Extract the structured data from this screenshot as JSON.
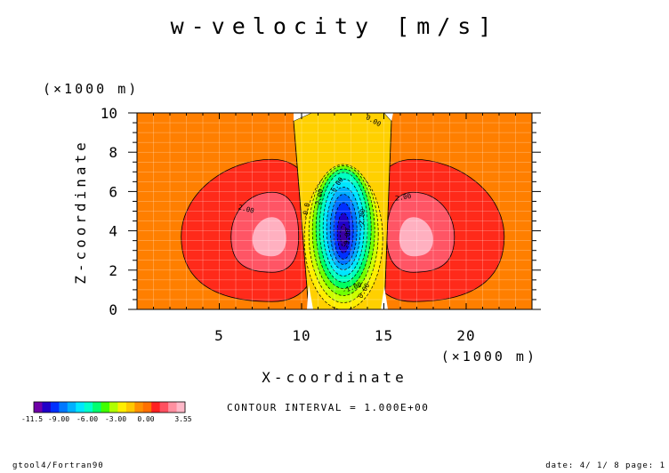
{
  "chart_data": {
    "type": "heatmap",
    "title": "w-velocity [m/s]",
    "xlabel": "X-coordinate",
    "ylabel": "Z-coordinate",
    "x_unit": "(×1000 m)",
    "y_unit": "(×1000 m)",
    "xlim": [
      0,
      24
    ],
    "ylim": [
      0,
      10
    ],
    "x_ticks": [
      5,
      10,
      15,
      20
    ],
    "x_tick_labels": [
      "5",
      "10",
      "15",
      "20"
    ],
    "y_ticks": [
      0,
      2,
      4,
      6,
      8,
      10
    ],
    "y_tick_labels": [
      "0",
      "2",
      "4",
      "6",
      "8",
      "10"
    ],
    "grid": true,
    "contour_interval_text": "CONTOUR INTERVAL = 1.000E+00",
    "contour_labels": [
      {
        "text": "0.00",
        "x": 14.3,
        "z": 9.5,
        "angle": 30
      },
      {
        "text": "-0.0",
        "x": 10.4,
        "z": 5.0,
        "angle": -80
      },
      {
        "text": "-2.00",
        "x": 11.2,
        "z": 5.6,
        "angle": -80
      },
      {
        "text": "-6.00",
        "x": 12.2,
        "z": 6.2,
        "angle": -55
      },
      {
        "text": "-9.00",
        "x": 12.9,
        "z": 3.6,
        "angle": -85
      },
      {
        "text": "-2.00",
        "x": 13.8,
        "z": 4.6,
        "angle": -85
      },
      {
        "text": "-1.00",
        "x": 13.1,
        "z": 1.0,
        "angle": -20
      },
      {
        "text": "0.00",
        "x": 13.9,
        "z": 0.9,
        "angle": -60
      },
      {
        "text": "2.00",
        "x": 6.6,
        "z": 5.0,
        "angle": 15
      },
      {
        "text": "2.00",
        "x": 16.2,
        "z": 5.6,
        "angle": -10
      }
    ],
    "colorbar": {
      "colors": [
        "#6f00a8",
        "#2000c8",
        "#0030ff",
        "#0078ff",
        "#00b0ff",
        "#00e6ff",
        "#00ffcc",
        "#00ff70",
        "#40ff00",
        "#b0ff00",
        "#ffee00",
        "#ffc800",
        "#ff9000",
        "#ff7000",
        "#ff2020",
        "#ff5060",
        "#ff90a0",
        "#ffb8c8"
      ],
      "tick_labels": [
        "-11.5",
        "-9.00",
        "-6.00",
        "-3.00",
        "0.00",
        "3.55"
      ],
      "min": -11.5,
      "max": 3.55
    }
  },
  "footer": {
    "left": "gtool4/Fortran90",
    "right": "date: 4/ 1/ 8 page: 1"
  },
  "colors": {
    "background_field": "#ff7f00",
    "updraft_outer": "#ff2a1a",
    "updraft_mid": "#ff5060",
    "updraft_core": "#ffb0c0",
    "downdraft_edge": "#ffd000"
  }
}
